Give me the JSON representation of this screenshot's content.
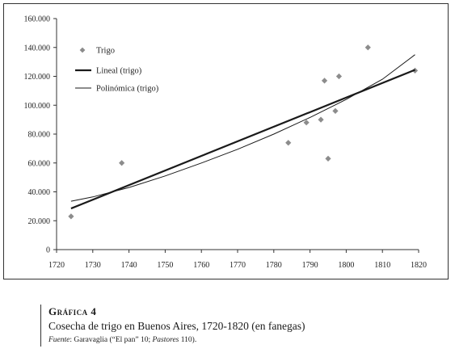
{
  "chart_data": {
    "type": "scatter",
    "xlim": [
      1720,
      1820
    ],
    "ylim": [
      0,
      160000
    ],
    "x_ticks": [
      "1720",
      "1730",
      "1740",
      "1750",
      "1760",
      "1770",
      "1780",
      "1790",
      "1800",
      "1810",
      "1820"
    ],
    "y_ticks": [
      "0",
      "20.000",
      "40.000",
      "60.000",
      "80.000",
      "100.000",
      "120.000",
      "140.000",
      "160.000"
    ],
    "grid": false,
    "legend_position": "top-left",
    "series": [
      {
        "name": "Trigo",
        "kind": "points",
        "color": "#8c8c8c",
        "points": [
          {
            "x": 1724,
            "y": 23000
          },
          {
            "x": 1738,
            "y": 60000
          },
          {
            "x": 1784,
            "y": 74000
          },
          {
            "x": 1789,
            "y": 88000
          },
          {
            "x": 1793,
            "y": 90000
          },
          {
            "x": 1794,
            "y": 117000
          },
          {
            "x": 1795,
            "y": 63000
          },
          {
            "x": 1797,
            "y": 96000
          },
          {
            "x": 1798,
            "y": 120000
          },
          {
            "x": 1806,
            "y": 140000
          },
          {
            "x": 1819,
            "y": 124000
          }
        ]
      },
      {
        "name": "Lineal (trigo)",
        "kind": "line",
        "color": "#1a1a1a",
        "x": [
          1724,
          1819
        ],
        "y": [
          28500,
          124500
        ]
      },
      {
        "name": "Polinómica (trigo)",
        "kind": "curve",
        "color": "#1a1a1a",
        "x": [
          1724,
          1730,
          1740,
          1750,
          1760,
          1770,
          1780,
          1790,
          1800,
          1810,
          1819
        ],
        "y": [
          33500,
          36500,
          43000,
          51000,
          60000,
          69500,
          80000,
          91500,
          104000,
          118000,
          135000
        ]
      }
    ]
  },
  "caption": {
    "heading": "Gráfica 4",
    "title": "Cosecha de trigo en Buenos Aires, 1720-1820 (en fanegas)",
    "source_label": "Fuente",
    "source_sep": ": Garavaglia (“El pan” 10; ",
    "source_work": "Pastores",
    "source_end": " 110)."
  }
}
